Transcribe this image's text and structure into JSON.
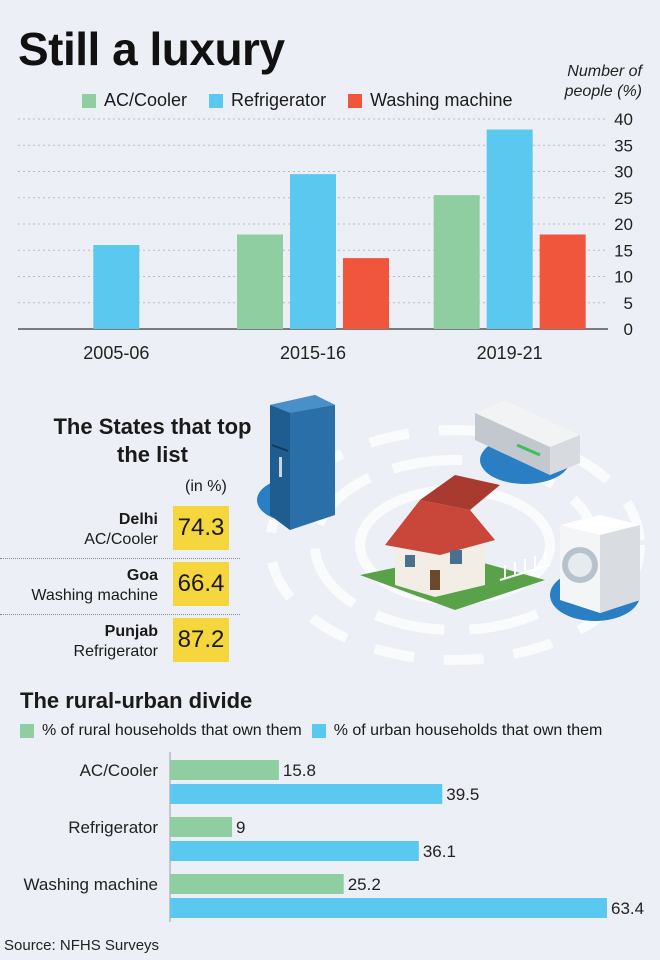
{
  "title": "Still a luxury",
  "colors": {
    "ac": "#8fcea0",
    "fridge": "#5bc8ef",
    "washer": "#f0563c",
    "highlight": "#f5d63d",
    "background": "#eceff5"
  },
  "chart_data": [
    {
      "type": "bar",
      "ylabel": "Number of people (%)",
      "categories": [
        "2005-06",
        "2015-16",
        "2019-21"
      ],
      "series": [
        {
          "name": "AC/Cooler",
          "values": [
            null,
            18,
            25.5
          ]
        },
        {
          "name": "Refrigerator",
          "values": [
            16,
            29.5,
            38
          ]
        },
        {
          "name": "Washing machine",
          "values": [
            null,
            13.5,
            18
          ]
        }
      ],
      "ylim": [
        0,
        40
      ],
      "yticks": [
        0,
        5,
        10,
        15,
        20,
        25,
        30,
        35,
        40
      ],
      "grid": true,
      "legend_position": "top"
    },
    {
      "type": "bar",
      "orientation": "horizontal",
      "title": "The rural-urban divide",
      "categories": [
        "AC/Cooler",
        "Refrigerator",
        "Washing machine"
      ],
      "series": [
        {
          "name": "% of rural households that own them",
          "values": [
            15.8,
            9,
            25.2
          ]
        },
        {
          "name": "% of urban households that own them",
          "values": [
            39.5,
            36.1,
            63.4
          ]
        }
      ],
      "legend_position": "top"
    }
  ],
  "states": {
    "title": "The States that top the list",
    "unit": "(in %)",
    "rows": [
      {
        "state": "Delhi",
        "item": "AC/Cooler",
        "value": "74.3"
      },
      {
        "state": "Goa",
        "item": "Washing machine",
        "value": "66.4"
      },
      {
        "state": "Punjab",
        "item": "Refrigerator",
        "value": "87.2"
      }
    ]
  },
  "illustration": {
    "icons": [
      "refrigerator-icon",
      "air-conditioner-icon",
      "house-icon",
      "washing-machine-icon"
    ]
  },
  "source": "Source: NFHS Surveys"
}
